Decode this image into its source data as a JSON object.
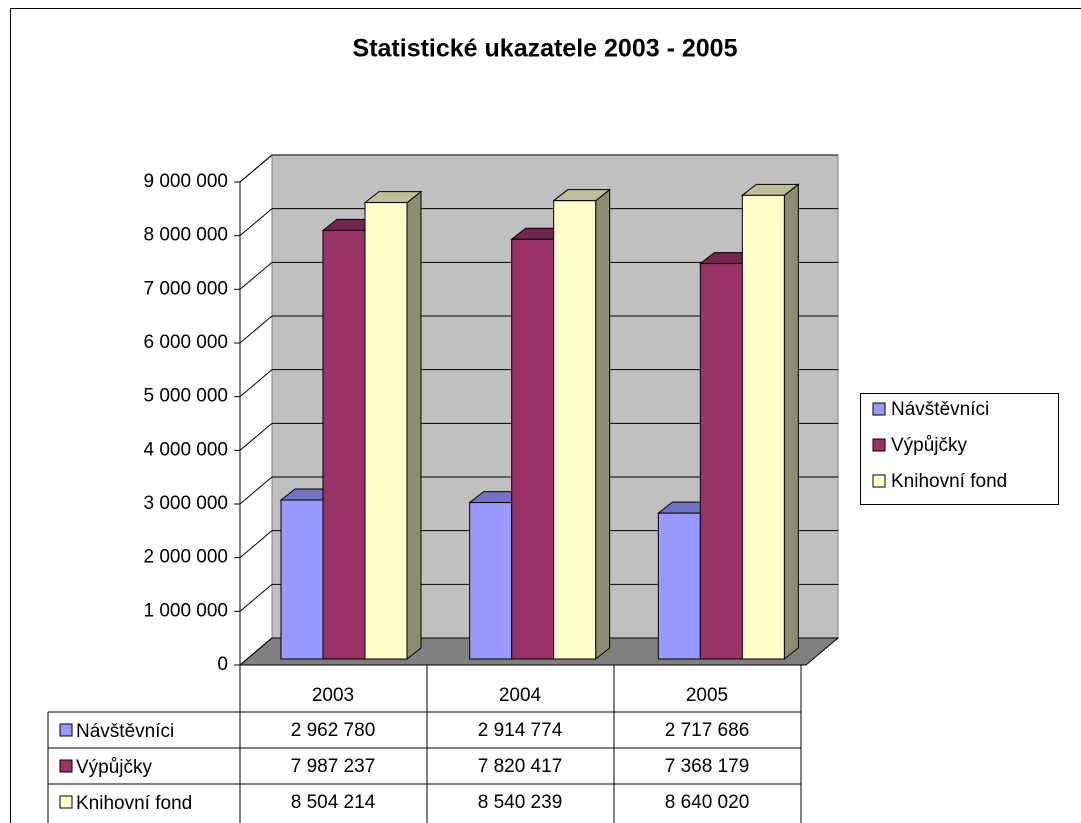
{
  "chart_data": {
    "type": "bar3d",
    "title": "Statistické ukazatele  2003 - 2005",
    "categories": [
      "2003",
      "2004",
      "2005"
    ],
    "series": [
      {
        "name": "Návštěvníci",
        "color": "#9999ff",
        "values": [
          2962780,
          2914774,
          2717686
        ],
        "value_labels": [
          "2 962 780",
          "2 914 774",
          "2 717 686"
        ]
      },
      {
        "name": "Výpůjčky",
        "color": "#993366",
        "values": [
          7987237,
          7820417,
          7368179
        ],
        "value_labels": [
          "7 987 237",
          "7 820 417",
          "7 368 179"
        ]
      },
      {
        "name": "Knihovní fond",
        "color": "#ffffcc",
        "values": [
          8504214,
          8540239,
          8640020
        ],
        "value_labels": [
          "8 504 214",
          "8 540 239",
          "8 640 020"
        ]
      }
    ],
    "ylim": [
      0,
      9000000
    ],
    "yticks": [
      0,
      {
        "value": 1000000,
        "label": "1 000 000"
      },
      {
        "value": 2000000,
        "label": "2 000 000"
      },
      {
        "value": 3000000,
        "label": "3 000 000"
      },
      {
        "value": 4000000,
        "label": "4 000 000"
      },
      {
        "value": 5000000,
        "label": "5 000 000"
      },
      {
        "value": 6000000,
        "label": "6 000 000"
      },
      {
        "value": 7000000,
        "label": "7 000 000"
      },
      {
        "value": 8000000,
        "label": "8 000 000"
      },
      {
        "value": 9000000,
        "label": "9 000 000"
      }
    ],
    "grid": true,
    "legend": "right",
    "data_table": true
  }
}
